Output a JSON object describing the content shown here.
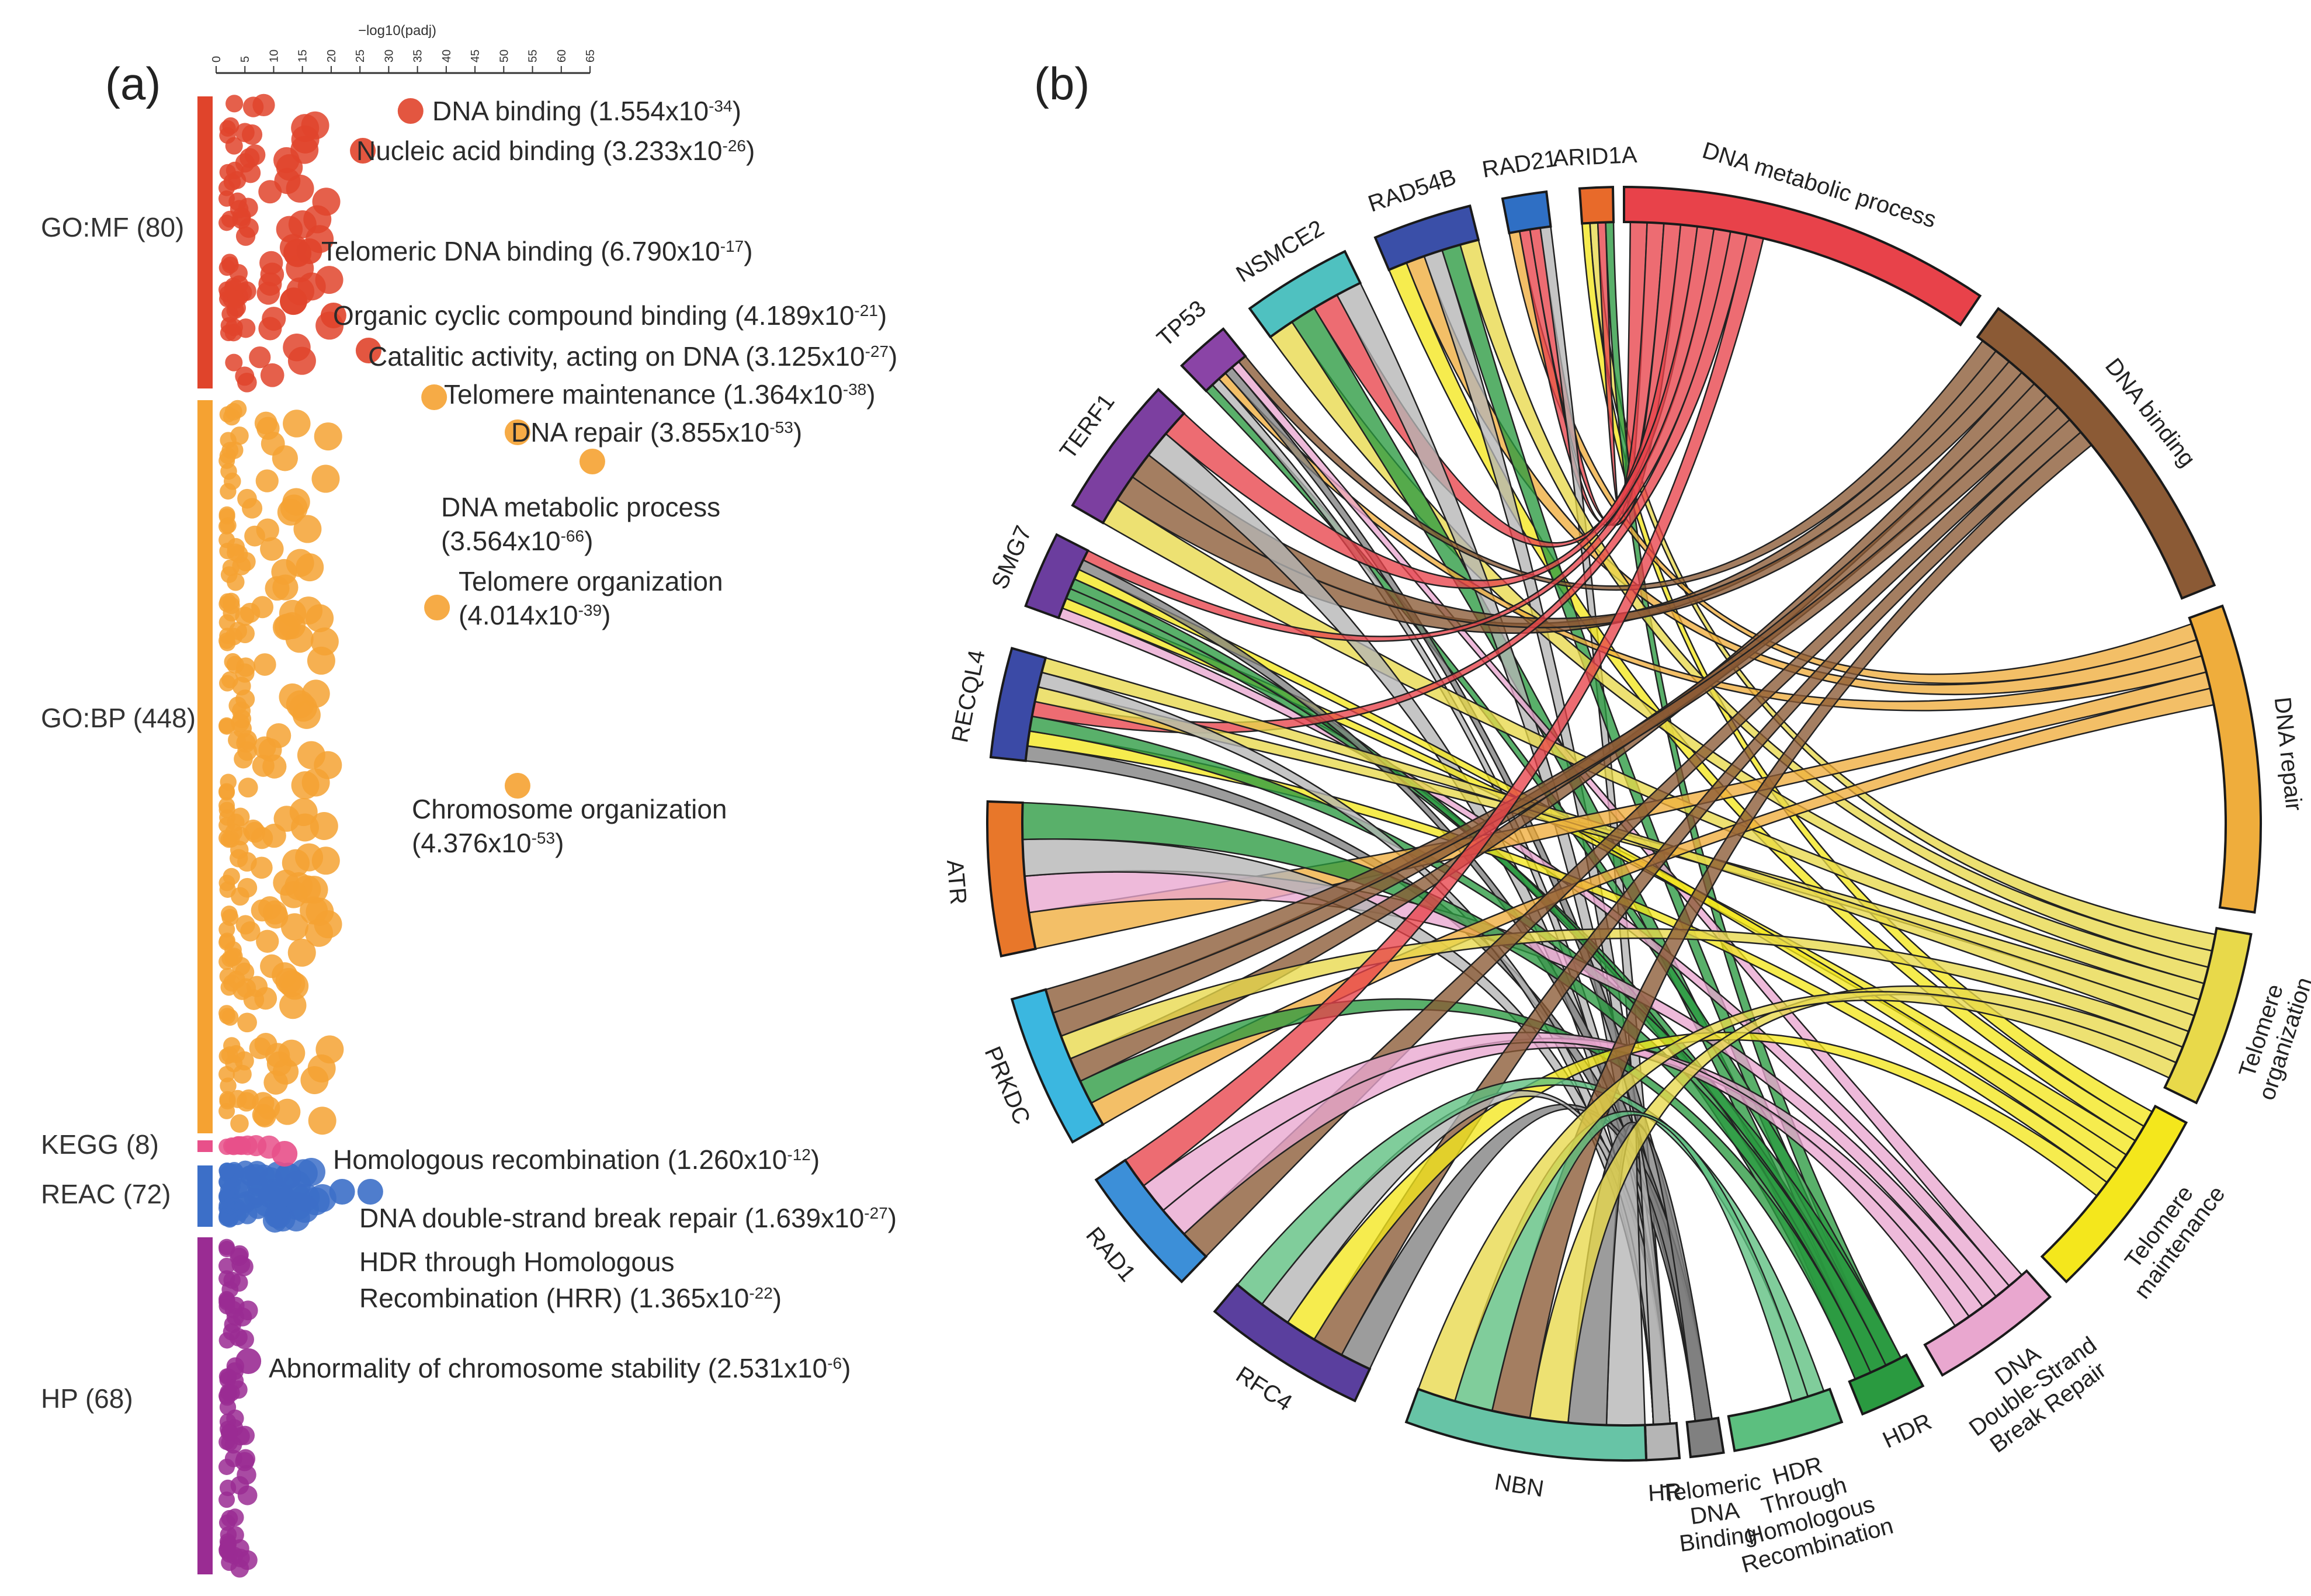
{
  "panels": {
    "a": "(a)",
    "b": "(b)"
  },
  "colors": {
    "GO:MF": "#e0442b",
    "GO:BP": "#f5a232",
    "KEGG": "#e8508a",
    "REAC": "#3c6fc8",
    "HP": "#9a2c93"
  },
  "chart_data": [
    {
      "type": "scatter",
      "title": "",
      "xlabel": "−log10(padj)",
      "xlim": [
        0,
        65
      ],
      "x_ticks": [
        "0",
        "5",
        "10",
        "15",
        "20",
        "25",
        "30",
        "35",
        "40",
        "45",
        "50",
        "55",
        "60",
        "65"
      ],
      "sources": [
        {
          "key": "GO:MF",
          "label": "GO:MF (80)",
          "count": 80
        },
        {
          "key": "GO:BP",
          "label": "GO:BP (448)",
          "count": 448
        },
        {
          "key": "KEGG",
          "label": "KEGG (8)",
          "count": 8
        },
        {
          "key": "REAC",
          "label": "REAC (72)",
          "count": 72
        },
        {
          "key": "HP",
          "label": "HP (68)",
          "count": 68
        }
      ],
      "highlighted_terms": [
        {
          "source": "GO:MF",
          "name": "DNA binding",
          "pval": "(1.554x10",
          "exp": "-34",
          "close": ")",
          "neglog10": 33.8
        },
        {
          "source": "GO:MF",
          "name": "Nucleic acid binding",
          "pval": "(3.233x10",
          "exp": "-26",
          "close": ")",
          "neglog10": 25.5
        },
        {
          "source": "GO:MF",
          "name": "Telomeric DNA binding",
          "pval": "(6.790x10",
          "exp": "-17",
          "close": ")",
          "neglog10": 16.2
        },
        {
          "source": "GO:MF",
          "name": "Organic cyclic compound binding",
          "pval": "(4.189x10",
          "exp": "-21",
          "close": ")",
          "neglog10": 20.4
        },
        {
          "source": "GO:MF",
          "name": "Catalitic activity, acting on DNA",
          "pval": "(3.125x10",
          "exp": "-27",
          "close": ")",
          "neglog10": 26.5
        },
        {
          "source": "GO:BP",
          "name": "Telomere maintenance",
          "pval": "(1.364x10",
          "exp": "-38",
          "close": ")",
          "neglog10": 37.9
        },
        {
          "source": "GO:BP",
          "name": "DNA repair",
          "pval": "(3.855x10",
          "exp": "-53",
          "close": ")",
          "neglog10": 52.4
        },
        {
          "source": "GO:BP",
          "name": "DNA metabolic process",
          "pval": "(3.564x10",
          "exp": "-66",
          "close": ")",
          "neglog10": 65.4
        },
        {
          "source": "GO:BP",
          "name": "Telomere organization",
          "pval": "(4.014x10",
          "exp": "-39",
          "close": ")",
          "neglog10": 38.4
        },
        {
          "source": "GO:BP",
          "name": "Chromosome organization",
          "pval": "(4.376x10",
          "exp": "-53",
          "close": ")",
          "neglog10": 52.4
        },
        {
          "source": "KEGG",
          "name": "Homologous recombination",
          "pval": "(1.260x10",
          "exp": "-12",
          "close": ")",
          "neglog10": 11.9
        },
        {
          "source": "REAC",
          "name": "DNA double-strand break repair",
          "pval": "(1.639x10",
          "exp": "-27",
          "close": ")",
          "neglog10": 26.8
        },
        {
          "source": "REAC",
          "name": "HDR through Homologous",
          "name2": "Recombination (HRR)",
          "pval": "(1.365x10",
          "exp": "-22",
          "close": ")",
          "neglog10": 21.9
        },
        {
          "source": "HP",
          "name": "Abnormality of chromosome stability",
          "pval": "(2.531x10",
          "exp": "-6",
          "close": ")",
          "neglog10": 5.6
        }
      ]
    },
    {
      "type": "chord",
      "genes": [
        {
          "name": "ARID1A",
          "color": "#e86a2a"
        },
        {
          "name": "RAD21",
          "color": "#2f6fc4"
        },
        {
          "name": "RAD54B",
          "color": "#3a4fa8"
        },
        {
          "name": "NSMCE2",
          "color": "#4fc1c0"
        },
        {
          "name": "TP53",
          "color": "#8a44a6"
        },
        {
          "name": "TERF1",
          "color": "#7c3fa0"
        },
        {
          "name": "SMG7",
          "color": "#6b3d9e"
        },
        {
          "name": "RECQL4",
          "color": "#3b4aa6"
        },
        {
          "name": "ATR",
          "color": "#e8772a"
        },
        {
          "name": "PRKDC",
          "color": "#3bb7e0"
        },
        {
          "name": "RAD1",
          "color": "#3c8fd8"
        },
        {
          "name": "RFC4",
          "color": "#5a3f9e"
        },
        {
          "name": "NBN",
          "color": "#67c4a6"
        }
      ],
      "terms": [
        {
          "name": "DNA metabolic process",
          "lines": [
            "DNA metabolic process"
          ],
          "color": "#e8424a"
        },
        {
          "name": "DNA binding",
          "lines": [
            "DNA binding"
          ],
          "color": "#8b5a35"
        },
        {
          "name": "DNA repair",
          "lines": [
            "DNA repair"
          ],
          "color": "#efad3c"
        },
        {
          "name": "Telomere organization",
          "lines": [
            "Telomere",
            "organization"
          ],
          "color": "#e8d94a"
        },
        {
          "name": "Telomere maintenance",
          "lines": [
            "Telomere",
            "maintenance"
          ],
          "color": "#f4e71c"
        },
        {
          "name": "DNA Double-Strand Break Repair",
          "lines": [
            "DNA",
            "Double-Strand",
            "Break Repair"
          ],
          "color": "#e9a7cf"
        },
        {
          "name": "HDR",
          "lines": [
            "HDR"
          ],
          "color": "#2a9a40"
        },
        {
          "name": "HDR Through Homologous Recombination",
          "lines": [
            "HDR",
            "Through",
            "Homologous",
            "Recombination"
          ],
          "color": "#5cbf7f"
        },
        {
          "name": "Telomeric DNA Binding",
          "lines": [
            "Telomeric",
            "DNA",
            "Binding"
          ],
          "color": "#808080"
        },
        {
          "name": "HR",
          "lines": [
            "HR"
          ],
          "color": "#b5b5b5"
        }
      ]
    }
  ]
}
